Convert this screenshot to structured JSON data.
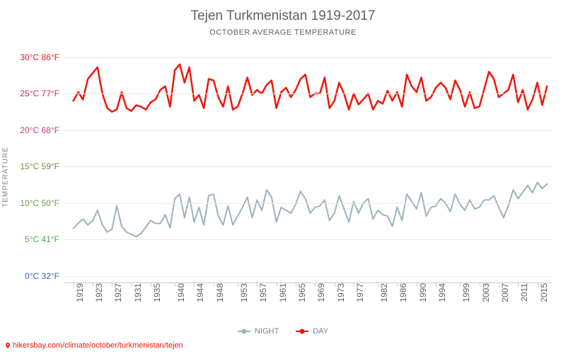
{
  "title": "Tejen Turkmenistan 1919-2017",
  "subtitle": "OCTOBER AVERAGE TEMPERATURE",
  "y_axis_label": "TEMPERATURE",
  "source_text": "hikersbay.com/climate/october/turkmenistan/tejen",
  "legend": {
    "night": "NIGHT",
    "day": "DAY"
  },
  "colors": {
    "day_line": "#f0160c",
    "night_line": "#9cb2bb",
    "grid": "#e8e8e8",
    "axis": "#cccccc",
    "source": "#f0160c",
    "bg": "#ffffff"
  },
  "y_ticks": [
    {
      "c": 0,
      "f": 32,
      "color": "#3a5fd9",
      "label_c": "0°C",
      "label_f": "32°F"
    },
    {
      "c": 5,
      "f": 41,
      "color": "#4aa84a",
      "label_c": "5°C",
      "label_f": "41°F"
    },
    {
      "c": 10,
      "f": 50,
      "color": "#6a9a3f",
      "label_c": "10°C",
      "label_f": "50°F"
    },
    {
      "c": 15,
      "f": 59,
      "color": "#7f8a3a",
      "label_c": "15°C",
      "label_f": "59°F"
    },
    {
      "c": 20,
      "f": 68,
      "color": "#c23a7a",
      "label_c": "20°C",
      "label_f": "68°F"
    },
    {
      "c": 25,
      "f": 77,
      "color": "#d22a4a",
      "label_c": "25°C",
      "label_f": "77°F"
    },
    {
      "c": 30,
      "f": 86,
      "color": "#e01a2a",
      "label_c": "30°C",
      "label_f": "86°F"
    }
  ],
  "ylim": [
    -1,
    32
  ],
  "xlim": [
    1917,
    2018
  ],
  "x_ticks": [
    1919,
    1923,
    1927,
    1931,
    1935,
    1940,
    1944,
    1948,
    1953,
    1957,
    1961,
    1965,
    1969,
    1973,
    1977,
    1982,
    1986,
    1990,
    1994,
    1999,
    2003,
    2007,
    2011,
    2015
  ],
  "chart": {
    "type": "line",
    "line_width_day": 2.5,
    "line_width_night": 2,
    "marker": "circle",
    "marker_size": 3,
    "series": {
      "day": [
        {
          "x": 1919,
          "y": 24.0
        },
        {
          "x": 1920,
          "y": 25.2
        },
        {
          "x": 1921,
          "y": 24.2
        },
        {
          "x": 1922,
          "y": 27.0
        },
        {
          "x": 1923,
          "y": 27.8
        },
        {
          "x": 1924,
          "y": 28.6
        },
        {
          "x": 1925,
          "y": 25.0
        },
        {
          "x": 1926,
          "y": 23.0
        },
        {
          "x": 1927,
          "y": 22.5
        },
        {
          "x": 1928,
          "y": 22.8
        },
        {
          "x": 1929,
          "y": 25.2
        },
        {
          "x": 1930,
          "y": 23.0
        },
        {
          "x": 1931,
          "y": 22.6
        },
        {
          "x": 1932,
          "y": 23.4
        },
        {
          "x": 1933,
          "y": 23.2
        },
        {
          "x": 1934,
          "y": 22.8
        },
        {
          "x": 1935,
          "y": 23.8
        },
        {
          "x": 1936,
          "y": 24.2
        },
        {
          "x": 1937,
          "y": 25.5
        },
        {
          "x": 1938,
          "y": 26.0
        },
        {
          "x": 1939,
          "y": 23.2
        },
        {
          "x": 1940,
          "y": 28.2
        },
        {
          "x": 1941,
          "y": 29.0
        },
        {
          "x": 1942,
          "y": 26.5
        },
        {
          "x": 1943,
          "y": 28.6
        },
        {
          "x": 1944,
          "y": 24.0
        },
        {
          "x": 1945,
          "y": 24.8
        },
        {
          "x": 1946,
          "y": 23.0
        },
        {
          "x": 1947,
          "y": 27.0
        },
        {
          "x": 1948,
          "y": 26.8
        },
        {
          "x": 1949,
          "y": 24.5
        },
        {
          "x": 1950,
          "y": 23.2
        },
        {
          "x": 1951,
          "y": 26.0
        },
        {
          "x": 1952,
          "y": 22.8
        },
        {
          "x": 1953,
          "y": 23.2
        },
        {
          "x": 1954,
          "y": 25.0
        },
        {
          "x": 1955,
          "y": 27.2
        },
        {
          "x": 1956,
          "y": 24.8
        },
        {
          "x": 1957,
          "y": 25.5
        },
        {
          "x": 1958,
          "y": 25.0
        },
        {
          "x": 1959,
          "y": 26.2
        },
        {
          "x": 1960,
          "y": 26.8
        },
        {
          "x": 1961,
          "y": 23.0
        },
        {
          "x": 1962,
          "y": 25.2
        },
        {
          "x": 1963,
          "y": 25.8
        },
        {
          "x": 1964,
          "y": 24.5
        },
        {
          "x": 1965,
          "y": 25.5
        },
        {
          "x": 1966,
          "y": 27.0
        },
        {
          "x": 1967,
          "y": 27.6
        },
        {
          "x": 1968,
          "y": 24.5
        },
        {
          "x": 1969,
          "y": 25.0
        },
        {
          "x": 1970,
          "y": 25.0
        },
        {
          "x": 1971,
          "y": 27.2
        },
        {
          "x": 1972,
          "y": 23.0
        },
        {
          "x": 1973,
          "y": 24.0
        },
        {
          "x": 1974,
          "y": 26.5
        },
        {
          "x": 1975,
          "y": 25.0
        },
        {
          "x": 1976,
          "y": 22.8
        },
        {
          "x": 1977,
          "y": 25.0
        },
        {
          "x": 1978,
          "y": 23.5
        },
        {
          "x": 1979,
          "y": 24.2
        },
        {
          "x": 1980,
          "y": 25.0
        },
        {
          "x": 1981,
          "y": 22.8
        },
        {
          "x": 1982,
          "y": 24.0
        },
        {
          "x": 1983,
          "y": 23.6
        },
        {
          "x": 1984,
          "y": 25.4
        },
        {
          "x": 1985,
          "y": 24.0
        },
        {
          "x": 1986,
          "y": 25.2
        },
        {
          "x": 1987,
          "y": 23.2
        },
        {
          "x": 1988,
          "y": 27.6
        },
        {
          "x": 1989,
          "y": 26.0
        },
        {
          "x": 1990,
          "y": 25.2
        },
        {
          "x": 1991,
          "y": 27.2
        },
        {
          "x": 1992,
          "y": 24.0
        },
        {
          "x": 1993,
          "y": 24.5
        },
        {
          "x": 1994,
          "y": 25.8
        },
        {
          "x": 1995,
          "y": 26.5
        },
        {
          "x": 1996,
          "y": 25.8
        },
        {
          "x": 1997,
          "y": 24.2
        },
        {
          "x": 1998,
          "y": 26.8
        },
        {
          "x": 1999,
          "y": 25.5
        },
        {
          "x": 2000,
          "y": 23.2
        },
        {
          "x": 2001,
          "y": 25.2
        },
        {
          "x": 2002,
          "y": 23.0
        },
        {
          "x": 2003,
          "y": 23.2
        },
        {
          "x": 2005,
          "y": 28.0
        },
        {
          "x": 2006,
          "y": 27.0
        },
        {
          "x": 2007,
          "y": 24.5
        },
        {
          "x": 2009,
          "y": 25.5
        },
        {
          "x": 2010,
          "y": 27.6
        },
        {
          "x": 2011,
          "y": 23.8
        },
        {
          "x": 2012,
          "y": 25.5
        },
        {
          "x": 2013,
          "y": 22.8
        },
        {
          "x": 2014,
          "y": 24.2
        },
        {
          "x": 2015,
          "y": 26.5
        },
        {
          "x": 2016,
          "y": 23.4
        },
        {
          "x": 2017,
          "y": 26.0
        }
      ],
      "night": [
        {
          "x": 1919,
          "y": 6.5
        },
        {
          "x": 1920,
          "y": 7.2
        },
        {
          "x": 1921,
          "y": 7.8
        },
        {
          "x": 1922,
          "y": 7.0
        },
        {
          "x": 1923,
          "y": 7.6
        },
        {
          "x": 1924,
          "y": 9.0
        },
        {
          "x": 1925,
          "y": 7.0
        },
        {
          "x": 1926,
          "y": 6.0
        },
        {
          "x": 1927,
          "y": 6.4
        },
        {
          "x": 1928,
          "y": 9.6
        },
        {
          "x": 1929,
          "y": 6.8
        },
        {
          "x": 1930,
          "y": 6.0
        },
        {
          "x": 1932,
          "y": 5.4
        },
        {
          "x": 1933,
          "y": 5.8
        },
        {
          "x": 1935,
          "y": 7.6
        },
        {
          "x": 1936,
          "y": 7.2
        },
        {
          "x": 1937,
          "y": 7.2
        },
        {
          "x": 1938,
          "y": 8.4
        },
        {
          "x": 1939,
          "y": 6.6
        },
        {
          "x": 1940,
          "y": 10.6
        },
        {
          "x": 1941,
          "y": 11.2
        },
        {
          "x": 1942,
          "y": 8.0
        },
        {
          "x": 1943,
          "y": 10.8
        },
        {
          "x": 1944,
          "y": 7.4
        },
        {
          "x": 1945,
          "y": 9.4
        },
        {
          "x": 1946,
          "y": 7.0
        },
        {
          "x": 1947,
          "y": 11.0
        },
        {
          "x": 1948,
          "y": 11.2
        },
        {
          "x": 1949,
          "y": 8.2
        },
        {
          "x": 1950,
          "y": 7.0
        },
        {
          "x": 1951,
          "y": 9.6
        },
        {
          "x": 1952,
          "y": 7.0
        },
        {
          "x": 1953,
          "y": 8.2
        },
        {
          "x": 1954,
          "y": 9.4
        },
        {
          "x": 1955,
          "y": 10.8
        },
        {
          "x": 1956,
          "y": 8.0
        },
        {
          "x": 1957,
          "y": 10.4
        },
        {
          "x": 1958,
          "y": 9.0
        },
        {
          "x": 1959,
          "y": 11.8
        },
        {
          "x": 1960,
          "y": 10.8
        },
        {
          "x": 1961,
          "y": 7.4
        },
        {
          "x": 1962,
          "y": 9.4
        },
        {
          "x": 1963,
          "y": 9.0
        },
        {
          "x": 1964,
          "y": 8.6
        },
        {
          "x": 1965,
          "y": 9.8
        },
        {
          "x": 1966,
          "y": 11.6
        },
        {
          "x": 1967,
          "y": 10.6
        },
        {
          "x": 1968,
          "y": 8.6
        },
        {
          "x": 1969,
          "y": 9.4
        },
        {
          "x": 1970,
          "y": 9.6
        },
        {
          "x": 1971,
          "y": 10.4
        },
        {
          "x": 1972,
          "y": 7.6
        },
        {
          "x": 1973,
          "y": 8.6
        },
        {
          "x": 1974,
          "y": 11.0
        },
        {
          "x": 1975,
          "y": 9.2
        },
        {
          "x": 1976,
          "y": 7.4
        },
        {
          "x": 1977,
          "y": 10.2
        },
        {
          "x": 1978,
          "y": 8.6
        },
        {
          "x": 1979,
          "y": 10.0
        },
        {
          "x": 1980,
          "y": 10.6
        },
        {
          "x": 1981,
          "y": 7.8
        },
        {
          "x": 1982,
          "y": 9.0
        },
        {
          "x": 1983,
          "y": 8.4
        },
        {
          "x": 1984,
          "y": 8.2
        },
        {
          "x": 1985,
          "y": 6.8
        },
        {
          "x": 1986,
          "y": 9.4
        },
        {
          "x": 1987,
          "y": 7.6
        },
        {
          "x": 1988,
          "y": 11.2
        },
        {
          "x": 1989,
          "y": 10.2
        },
        {
          "x": 1990,
          "y": 9.2
        },
        {
          "x": 1991,
          "y": 11.4
        },
        {
          "x": 1992,
          "y": 8.2
        },
        {
          "x": 1993,
          "y": 9.4
        },
        {
          "x": 1994,
          "y": 9.6
        },
        {
          "x": 1995,
          "y": 10.6
        },
        {
          "x": 1996,
          "y": 10.0
        },
        {
          "x": 1997,
          "y": 8.8
        },
        {
          "x": 1998,
          "y": 11.2
        },
        {
          "x": 1999,
          "y": 9.8
        },
        {
          "x": 2000,
          "y": 9.0
        },
        {
          "x": 2001,
          "y": 10.4
        },
        {
          "x": 2002,
          "y": 9.2
        },
        {
          "x": 2003,
          "y": 9.4
        },
        {
          "x": 2004,
          "y": 10.4
        },
        {
          "x": 2005,
          "y": 10.4
        },
        {
          "x": 2006,
          "y": 11.0
        },
        {
          "x": 2007,
          "y": 9.4
        },
        {
          "x": 2008,
          "y": 8.0
        },
        {
          "x": 2009,
          "y": 9.6
        },
        {
          "x": 2010,
          "y": 11.8
        },
        {
          "x": 2011,
          "y": 10.6
        },
        {
          "x": 2013,
          "y": 12.4
        },
        {
          "x": 2014,
          "y": 11.4
        },
        {
          "x": 2015,
          "y": 12.8
        },
        {
          "x": 2016,
          "y": 12.0
        },
        {
          "x": 2017,
          "y": 12.6
        }
      ]
    }
  }
}
